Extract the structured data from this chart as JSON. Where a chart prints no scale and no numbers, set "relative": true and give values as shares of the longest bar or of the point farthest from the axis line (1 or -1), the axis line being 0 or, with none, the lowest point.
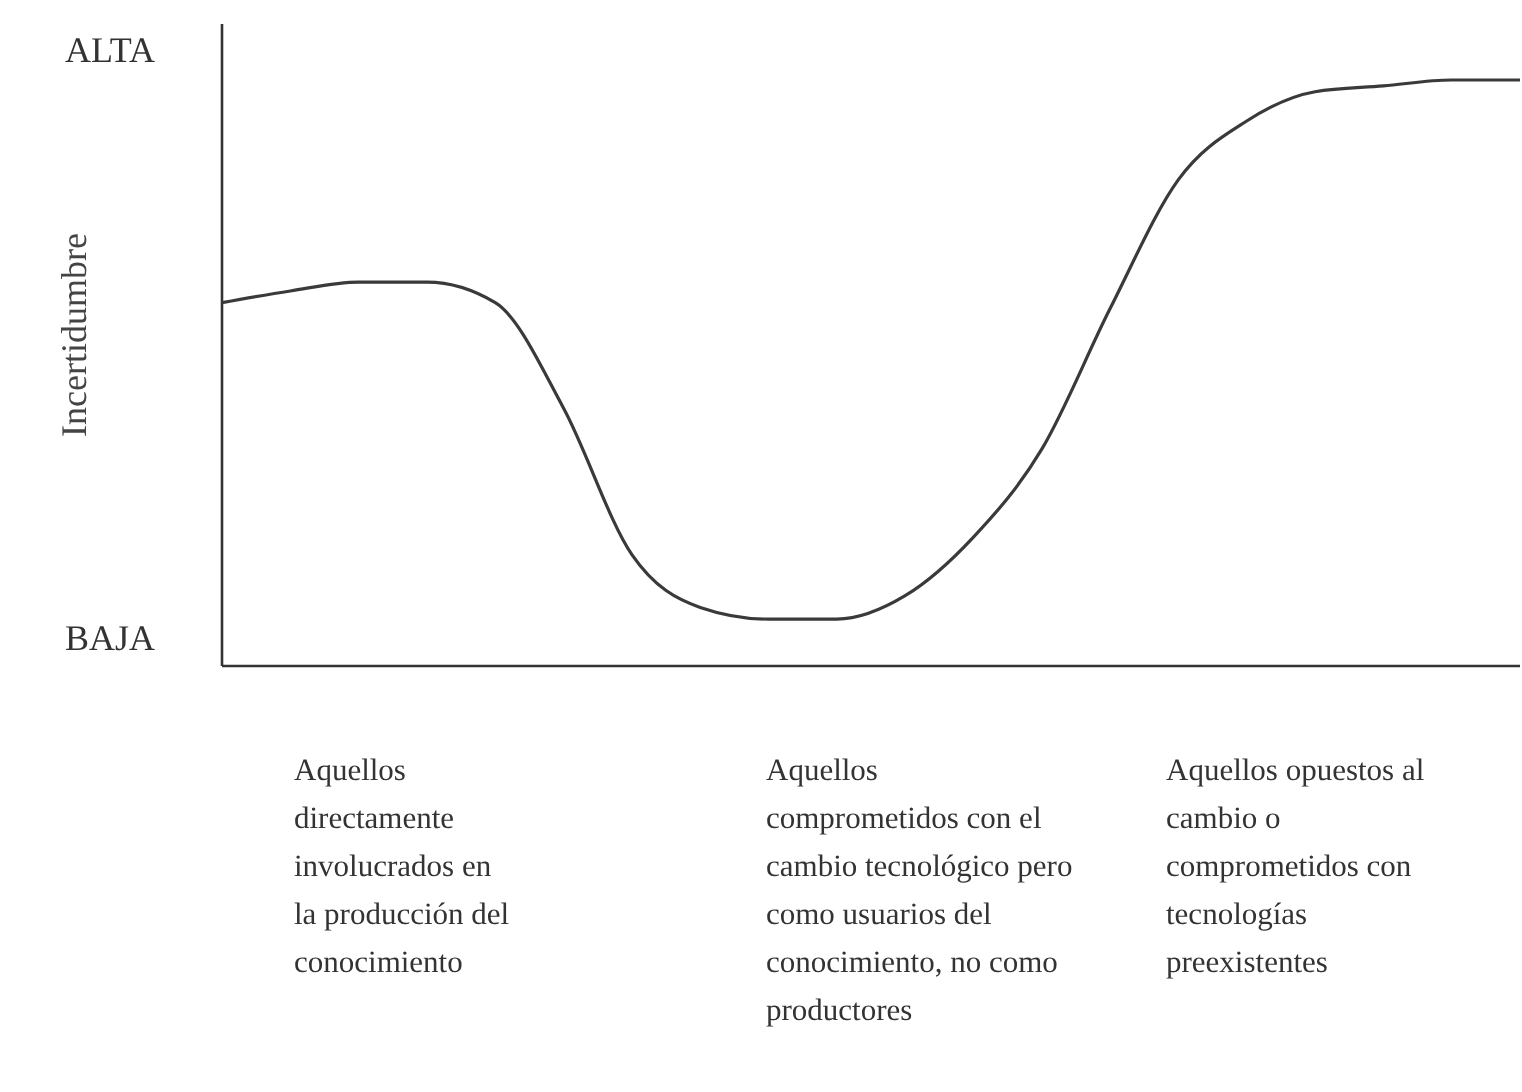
{
  "chart_data": {
    "type": "line",
    "relative": true,
    "ylabel": "Incertidumbre",
    "categories": [
      null,
      null,
      null,
      null,
      null,
      null,
      null,
      null,
      null,
      null,
      null,
      null,
      null,
      null,
      null,
      null,
      null,
      null,
      null,
      null
    ],
    "series": [
      {
        "color": "#3a3a3a",
        "values": [
          0.62,
          0.64,
          0.655,
          0.655,
          0.62,
          0.44,
          0.19,
          0.1,
          0.08,
          0.08,
          0.12,
          0.22,
          0.37,
          0.61,
          0.83,
          0.93,
          0.98,
          0.99,
          1,
          1
        ]
      }
    ],
    "annotations": [
      "ALTA",
      "BAJA",
      "Aquellos\ndirectamente\ninvolucrados en\nla producción del\nconocimiento",
      "Aquellos\ncomprometidos con el\ncambio tecnológico pero\ncomo usuarios del\nconocimiento, no como\nproductores",
      "Aquellos opuestos al\ncambio o\ncomprometidos con\ntecnologías\npreexistentes"
    ],
    "marker": "none",
    "line_style": "solid"
  }
}
